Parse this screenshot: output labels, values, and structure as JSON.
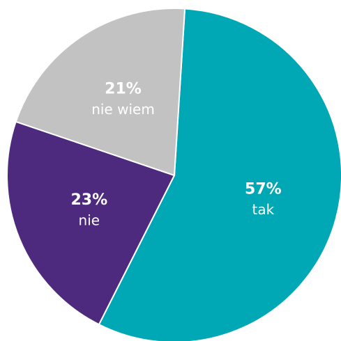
{
  "chart_data": {
    "type": "pie",
    "categories": [
      "tak",
      "nie",
      "nie wiem"
    ],
    "values": [
      57,
      23,
      21
    ],
    "value_labels": [
      "57%",
      "23%",
      "21%"
    ],
    "colors": [
      "#00a8b5",
      "#4e2a7e",
      "#c2c2c2"
    ]
  }
}
